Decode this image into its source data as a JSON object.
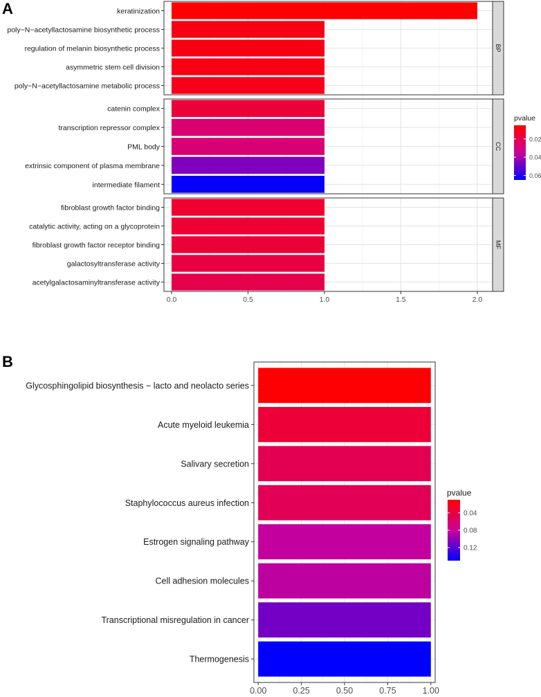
{
  "chart_data": [
    {
      "panel": "A",
      "type": "bar",
      "orientation": "horizontal",
      "xlim": [
        -0.05,
        2.1
      ],
      "x_ticks": [
        "0.0",
        "0.5",
        "1.0",
        "1.5",
        "2.0"
      ],
      "x_tick_values": [
        0,
        0.5,
        1.0,
        1.5,
        2.0
      ],
      "legend": {
        "title": "pvalue",
        "ticks": [
          "0.02",
          "0.04",
          "0.06"
        ],
        "tick_values": [
          0.02,
          0.04,
          0.06
        ],
        "range": [
          0.005,
          0.065
        ],
        "low_color": "#ff0000",
        "high_color": "#0000ff"
      },
      "facets": [
        {
          "label": "BP",
          "categories": [
            {
              "term": "keratinization",
              "count": 2,
              "pvalue": 0.005
            },
            {
              "term": "poly−N−acetyllactosamine biosynthetic process",
              "count": 1,
              "pvalue": 0.009
            },
            {
              "term": "regulation of melanin biosynthetic process",
              "count": 1,
              "pvalue": 0.009
            },
            {
              "term": "asymmetric stem cell division",
              "count": 1,
              "pvalue": 0.009
            },
            {
              "term": "poly−N−acetyllactosamine metabolic process",
              "count": 1,
              "pvalue": 0.01
            }
          ]
        },
        {
          "label": "CC",
          "categories": [
            {
              "term": "catenin complex",
              "count": 1,
              "pvalue": 0.016
            },
            {
              "term": "transcription repressor complex",
              "count": 1,
              "pvalue": 0.027
            },
            {
              "term": "PML body",
              "count": 1,
              "pvalue": 0.028
            },
            {
              "term": "extrinsic component of plasma membrane",
              "count": 1,
              "pvalue": 0.046
            },
            {
              "term": "intermediate filament",
              "count": 1,
              "pvalue": 0.064
            }
          ]
        },
        {
          "label": "MF",
          "categories": [
            {
              "term": "fibroblast growth factor binding",
              "count": 1,
              "pvalue": 0.014
            },
            {
              "term": "catalytic activity, acting on a glycoprotein",
              "count": 1,
              "pvalue": 0.015
            },
            {
              "term": "fibroblast growth factor receptor binding",
              "count": 1,
              "pvalue": 0.016
            },
            {
              "term": "galactosyltransferase activity",
              "count": 1,
              "pvalue": 0.018
            },
            {
              "term": "acetylgalactosaminyltransferase activity",
              "count": 1,
              "pvalue": 0.02
            }
          ]
        }
      ]
    },
    {
      "panel": "B",
      "type": "bar",
      "orientation": "horizontal",
      "xlim": [
        -0.025,
        1.025
      ],
      "x_ticks": [
        "0.00",
        "0.25",
        "0.50",
        "0.75",
        "1.00"
      ],
      "x_tick_values": [
        0,
        0.25,
        0.5,
        0.75,
        1.0
      ],
      "legend": {
        "title": "pvalue",
        "ticks": [
          "0.04",
          "0.08",
          "0.12"
        ],
        "tick_values": [
          0.04,
          0.08,
          0.12
        ],
        "range": [
          0.01,
          0.15
        ],
        "low_color": "#ff0000",
        "high_color": "#0000ff"
      },
      "categories": [
        {
          "term": "Glycosphingolipid biosynthesis − lacto and neolacto series",
          "count": 1,
          "pvalue": 0.012
        },
        {
          "term": "Acute myeloid leukemia",
          "count": 1,
          "pvalue": 0.035
        },
        {
          "term": "Salivary secretion",
          "count": 1,
          "pvalue": 0.048
        },
        {
          "term": "Staphylococcus aureus infection",
          "count": 1,
          "pvalue": 0.05
        },
        {
          "term": "Estrogen signaling pathway",
          "count": 1,
          "pvalue": 0.083
        },
        {
          "term": "Cell adhesion molecules",
          "count": 1,
          "pvalue": 0.085
        },
        {
          "term": "Transcriptional misregulation in cancer",
          "count": 1,
          "pvalue": 0.11
        },
        {
          "term": "Thermogenesis",
          "count": 1,
          "pvalue": 0.15
        }
      ]
    }
  ],
  "panel_labels": {
    "a": "A",
    "b": "B"
  }
}
